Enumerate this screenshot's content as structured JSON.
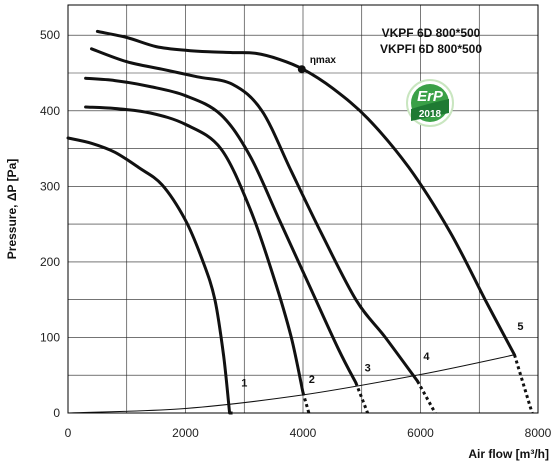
{
  "chart_data": {
    "type": "line",
    "title_lines": [
      "VKPF 6D 800*500",
      "VKPFI 6D 800*500"
    ],
    "xlabel": "Air flow [m³/h]",
    "ylabel": "Pressure, ΔP [Pa]",
    "xlim": [
      0,
      8000
    ],
    "ylim": [
      0,
      540
    ],
    "grid": true,
    "x_ticks": [
      "0",
      "2000",
      "4000",
      "6000",
      "8000"
    ],
    "y_ticks": [
      "0",
      "100",
      "200",
      "300",
      "400",
      "500"
    ],
    "series": [
      {
        "name": "1",
        "x": [
          0,
          400,
          800,
          1200,
          1600,
          2000,
          2300,
          2500,
          2650,
          2750
        ],
        "y": [
          364,
          357,
          345,
          325,
          302,
          255,
          200,
          150,
          75,
          0
        ],
        "extension": {
          "x": [
            2750,
            2850
          ],
          "y": [
            0,
            0
          ]
        }
      },
      {
        "name": "2",
        "x": [
          300,
          800,
          1400,
          2000,
          2600,
          3100,
          3500,
          3800,
          4000
        ],
        "y": [
          405,
          403,
          397,
          382,
          350,
          270,
          180,
          100,
          27
        ]
      },
      {
        "name": "3",
        "x": [
          300,
          800,
          1400,
          2000,
          2600,
          3100,
          3600,
          4100,
          4600,
          4900
        ],
        "y": [
          443,
          440,
          432,
          420,
          395,
          340,
          255,
          170,
          85,
          40
        ]
      },
      {
        "name": "4",
        "x": [
          400,
          1000,
          1600,
          2200,
          2800,
          3300,
          3800,
          4300,
          4900,
          5400,
          5950
        ],
        "y": [
          482,
          465,
          455,
          445,
          435,
          400,
          320,
          240,
          150,
          100,
          42
        ]
      },
      {
        "name": "5",
        "x": [
          500,
          1000,
          1500,
          2000,
          2400,
          2800,
          3200,
          3600,
          4000,
          4500,
          5100,
          5800,
          6500,
          7100,
          7600
        ],
        "y": [
          505,
          497,
          485,
          480,
          478,
          477,
          476,
          468,
          455,
          430,
          390,
          325,
          240,
          150,
          77
        ]
      }
    ],
    "dotted_extensions": [
      {
        "x": [
          2750,
          2850
        ],
        "y": [
          0,
          0
        ]
      },
      {
        "x": [
          4000,
          4100
        ],
        "y": [
          27,
          0
        ]
      },
      {
        "x": [
          4900,
          5100
        ],
        "y": [
          40,
          0
        ]
      },
      {
        "x": [
          5950,
          6250
        ],
        "y": [
          42,
          0
        ]
      },
      {
        "x": [
          7600,
          7900
        ],
        "y": [
          77,
          0
        ]
      }
    ],
    "system_curve": {
      "x": [
        0,
        2000,
        4000,
        6000,
        7600
      ],
      "y": [
        0,
        6,
        24,
        51,
        77
      ]
    },
    "eta_max": {
      "label": "ηmax",
      "x": 3980,
      "y": 455
    },
    "badge": {
      "top": "ErP",
      "bottom": "2018"
    }
  }
}
